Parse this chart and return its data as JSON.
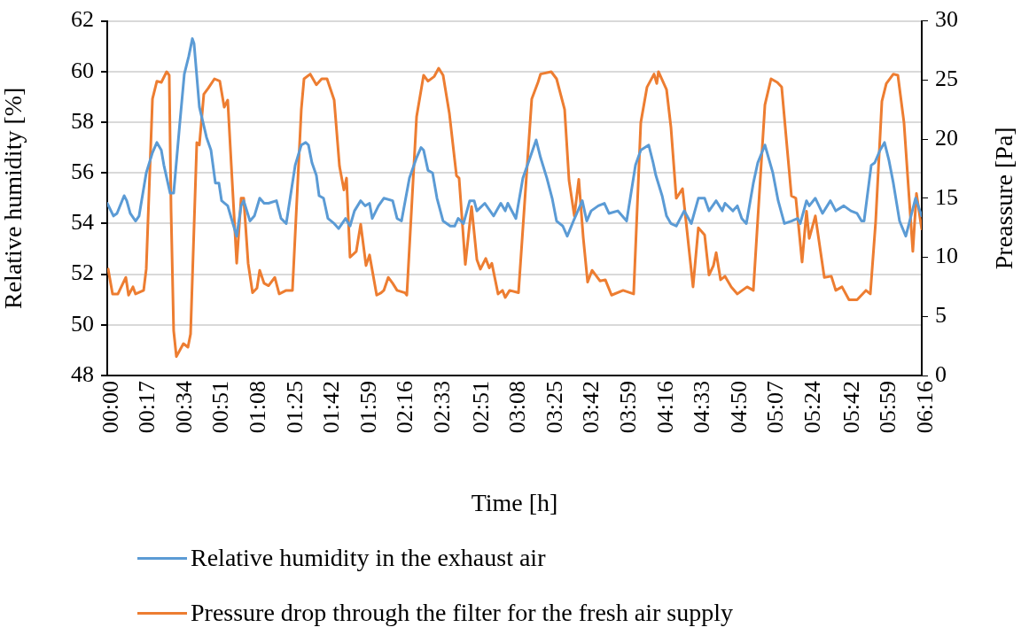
{
  "chart_data": {
    "type": "line",
    "xlabel": "Time [h]",
    "ylabel": "Relative humidity [%]",
    "y2label": "Preassure [Pa]",
    "xlim": [
      0,
      6.2667
    ],
    "xticks": [
      {
        "value": 0,
        "label": "00:00"
      },
      {
        "value": 0.2833,
        "label": "00:17"
      },
      {
        "value": 0.5667,
        "label": "00:34"
      },
      {
        "value": 0.85,
        "label": "00:51"
      },
      {
        "value": 1.1333,
        "label": "01:08"
      },
      {
        "value": 1.4167,
        "label": "01:25"
      },
      {
        "value": 1.7,
        "label": "01:42"
      },
      {
        "value": 1.9833,
        "label": "01:59"
      },
      {
        "value": 2.2667,
        "label": "02:16"
      },
      {
        "value": 2.55,
        "label": "02:33"
      },
      {
        "value": 2.85,
        "label": "02:51"
      },
      {
        "value": 3.1333,
        "label": "03:08"
      },
      {
        "value": 3.4167,
        "label": "03:25"
      },
      {
        "value": 3.7,
        "label": "03:42"
      },
      {
        "value": 3.9833,
        "label": "03:59"
      },
      {
        "value": 4.2667,
        "label": "04:16"
      },
      {
        "value": 4.55,
        "label": "04:33"
      },
      {
        "value": 4.8333,
        "label": "04:50"
      },
      {
        "value": 5.1167,
        "label": "05:07"
      },
      {
        "value": 5.4,
        "label": "05:24"
      },
      {
        "value": 5.7,
        "label": "05:42"
      },
      {
        "value": 5.9833,
        "label": "05:59"
      },
      {
        "value": 6.2667,
        "label": "06:16"
      }
    ],
    "ylim": [
      48,
      62
    ],
    "yticks": [
      48,
      50,
      52,
      54,
      56,
      58,
      60,
      62
    ],
    "y2lim": [
      0,
      30
    ],
    "y2ticks": [
      0,
      5,
      10,
      15,
      20,
      25,
      30
    ],
    "grid": "y",
    "legend": "bottom",
    "marker": "none",
    "line_style": "solid",
    "series": [
      {
        "name": "Relative humidity in the exhaust air",
        "color": "#5b9bd5",
        "x": [
          0,
          0.048,
          0.075,
          0.13,
          0.15,
          0.177,
          0.218,
          0.245,
          0.3,
          0.348,
          0.382,
          0.416,
          0.436,
          0.484,
          0.511,
          0.559,
          0.593,
          0.627,
          0.655,
          0.668,
          0.709,
          0.764,
          0.798,
          0.832,
          0.859,
          0.88,
          0.927,
          0.961,
          0.996,
          1.03,
          1.05,
          1.098,
          1.132,
          1.173,
          1.207,
          1.241,
          1.302,
          1.337,
          1.377,
          1.446,
          1.493,
          1.527,
          1.548,
          1.575,
          1.609,
          1.63,
          1.664,
          1.698,
          1.746,
          1.78,
          1.834,
          1.868,
          1.902,
          1.95,
          1.984,
          2.018,
          2.039,
          2.087,
          2.128,
          2.196,
          2.23,
          2.264,
          2.325,
          2.38,
          2.414,
          2.434,
          2.468,
          2.503,
          2.537,
          2.584,
          2.639,
          2.673,
          2.7,
          2.741,
          2.789,
          2.823,
          2.844,
          2.905,
          2.973,
          3.028,
          3.062,
          3.082,
          3.144,
          3.198,
          3.253,
          3.3,
          3.334,
          3.382,
          3.423,
          3.457,
          3.505,
          3.539,
          3.587,
          3.655,
          3.689,
          3.723,
          3.778,
          3.825,
          3.86,
          3.928,
          3.996,
          4.064,
          4.105,
          4.166,
          4.2,
          4.221,
          4.269,
          4.303,
          4.337,
          4.378,
          4.439,
          4.494,
          4.548,
          4.596,
          4.63,
          4.685,
          4.732,
          4.753,
          4.814,
          4.848,
          4.882,
          4.917,
          4.971,
          5.005,
          5.06,
          5.121,
          5.162,
          5.21,
          5.264,
          5.312,
          5.332,
          5.38,
          5.401,
          5.448,
          5.503,
          5.564,
          5.605,
          5.667,
          5.721,
          5.769,
          5.803,
          5.823,
          5.878,
          5.905,
          5.946,
          5.98,
          6.014,
          6.048,
          6.096,
          6.144,
          6.219,
          6.266
        ],
        "values": [
          54.8,
          54.3,
          54.4,
          55.1,
          54.9,
          54.4,
          54.1,
          54.3,
          56.0,
          56.8,
          57.2,
          56.9,
          56.3,
          55.2,
          55.2,
          58.0,
          59.9,
          60.6,
          61.3,
          61.1,
          58.6,
          57.4,
          56.9,
          55.6,
          55.6,
          54.9,
          54.7,
          54.1,
          53.5,
          54.7,
          54.9,
          54.1,
          54.3,
          55.0,
          54.8,
          54.8,
          54.9,
          54.2,
          54.0,
          56.3,
          57.1,
          57.2,
          57.1,
          56.4,
          55.9,
          55.1,
          55.0,
          54.2,
          54.0,
          53.8,
          54.2,
          53.9,
          54.5,
          54.9,
          54.7,
          54.8,
          54.2,
          54.7,
          55.0,
          54.9,
          54.2,
          54.1,
          55.8,
          56.6,
          57.0,
          56.9,
          56.1,
          56.0,
          55.0,
          54.1,
          53.9,
          53.9,
          54.2,
          54.0,
          54.9,
          54.9,
          54.5,
          54.8,
          54.3,
          54.8,
          54.5,
          54.8,
          54.2,
          55.8,
          56.6,
          57.3,
          56.6,
          55.8,
          55.0,
          54.1,
          53.9,
          53.5,
          54.1,
          54.9,
          54.1,
          54.5,
          54.7,
          54.8,
          54.4,
          54.5,
          54.1,
          56.3,
          56.9,
          57.1,
          56.4,
          55.9,
          55.1,
          54.3,
          54.0,
          53.9,
          54.5,
          54.0,
          55.0,
          55.0,
          54.5,
          54.9,
          54.5,
          54.8,
          54.5,
          54.7,
          54.2,
          54.0,
          55.6,
          56.4,
          57.1,
          56.0,
          54.9,
          54.0,
          54.1,
          54.2,
          54.0,
          54.9,
          54.7,
          55.0,
          54.4,
          54.9,
          54.5,
          54.7,
          54.5,
          54.4,
          54.1,
          54.1,
          56.3,
          56.4,
          56.9,
          57.2,
          56.5,
          55.6,
          54.1,
          53.5,
          55.0,
          54.3
        ]
      },
      {
        "name": "Pressure drop through the filter for the fresh air supply",
        "color": "#ed7d31",
        "axis": "y2",
        "x": [
          0.007,
          0.041,
          0.082,
          0.143,
          0.164,
          0.198,
          0.218,
          0.28,
          0.3,
          0.348,
          0.382,
          0.416,
          0.457,
          0.477,
          0.491,
          0.511,
          0.532,
          0.586,
          0.621,
          0.641,
          0.689,
          0.709,
          0.743,
          0.777,
          0.825,
          0.866,
          0.9,
          0.927,
          0.996,
          1.03,
          1.05,
          1.084,
          1.118,
          1.152,
          1.173,
          1.207,
          1.241,
          1.289,
          1.323,
          1.377,
          1.425,
          1.493,
          1.514,
          1.562,
          1.609,
          1.65,
          1.691,
          1.746,
          1.787,
          1.821,
          1.841,
          1.868,
          1.916,
          1.95,
          1.991,
          2.018,
          2.073,
          2.107,
          2.128,
          2.162,
          2.196,
          2.23,
          2.291,
          2.305,
          2.38,
          2.434,
          2.468,
          2.516,
          2.55,
          2.584,
          2.632,
          2.687,
          2.707,
          2.755,
          2.803,
          2.844,
          2.871,
          2.912,
          2.939,
          2.959,
          3.007,
          3.041,
          3.062,
          3.096,
          3.164,
          3.266,
          3.314,
          3.334,
          3.416,
          3.457,
          3.519,
          3.553,
          3.594,
          3.628,
          3.662,
          3.696,
          3.73,
          3.791,
          3.832,
          3.88,
          3.969,
          4.05,
          4.105,
          4.153,
          4.207,
          4.228,
          4.241,
          4.303,
          4.337,
          4.378,
          4.426,
          4.507,
          4.548,
          4.596,
          4.63,
          4.664,
          4.685,
          4.719,
          4.753,
          4.801,
          4.848,
          4.923,
          4.971,
          5.06,
          5.107,
          5.155,
          5.189,
          5.223,
          5.264,
          5.298,
          5.346,
          5.38,
          5.401,
          5.448,
          5.517,
          5.571,
          5.605,
          5.653,
          5.707,
          5.769,
          5.837,
          5.871,
          5.912,
          5.96,
          5.994,
          6.048,
          6.083,
          6.13,
          6.198,
          6.226,
          6.266
        ],
        "values": [
          9.0,
          6.9,
          6.9,
          8.3,
          6.8,
          7.5,
          6.9,
          7.2,
          9.0,
          23.4,
          24.9,
          24.8,
          25.7,
          25.4,
          14.0,
          3.8,
          1.6,
          2.7,
          2.4,
          3.5,
          19.7,
          19.5,
          23.8,
          24.3,
          25.1,
          24.9,
          22.7,
          23.3,
          9.5,
          15.0,
          15.0,
          9.5,
          7.0,
          7.4,
          8.9,
          7.8,
          7.6,
          8.3,
          6.9,
          7.2,
          7.2,
          22.5,
          25.1,
          25.5,
          24.6,
          25.1,
          25.1,
          23.3,
          17.7,
          15.7,
          16.7,
          10.0,
          10.5,
          12.8,
          9.3,
          10.2,
          6.8,
          7.0,
          7.2,
          8.3,
          7.8,
          7.2,
          7.0,
          6.8,
          21.9,
          25.4,
          24.9,
          25.3,
          26.0,
          25.4,
          22.2,
          16.9,
          16.7,
          9.4,
          14.3,
          9.8,
          9.0,
          9.9,
          9.1,
          9.5,
          6.9,
          7.2,
          6.6,
          7.2,
          7.0,
          23.4,
          24.8,
          25.5,
          25.7,
          25.1,
          22.5,
          16.5,
          13.5,
          16.6,
          11.7,
          7.9,
          8.9,
          8.0,
          8.1,
          6.8,
          7.2,
          6.9,
          21.4,
          24.4,
          25.5,
          24.7,
          25.7,
          24.2,
          21.0,
          15.0,
          15.8,
          7.5,
          12.5,
          11.9,
          8.5,
          9.3,
          10.4,
          8.1,
          8.4,
          7.5,
          6.9,
          7.5,
          7.2,
          22.9,
          25.1,
          24.8,
          24.4,
          20.2,
          15.2,
          15.0,
          9.6,
          13.9,
          11.6,
          13.5,
          8.3,
          8.4,
          7.2,
          7.5,
          6.4,
          6.4,
          7.2,
          6.9,
          13.0,
          23.2,
          24.7,
          25.5,
          25.4,
          21.4,
          10.5,
          15.4,
          12.4
        ]
      }
    ]
  }
}
